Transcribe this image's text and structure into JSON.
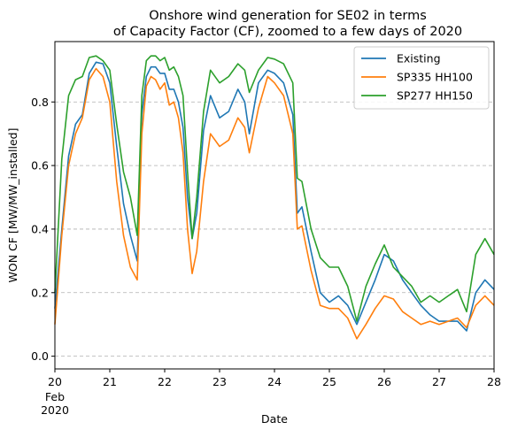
{
  "chart_data": {
    "type": "line",
    "title_lines": [
      "Onshore wind generation for SE02 in terms",
      "of Capacity Factor (CF), zoomed to a few days of 2020"
    ],
    "xlabel": "Date",
    "ylabel": "WON CF [MW/MW_installed]",
    "xlim": [
      "2020-02-20",
      "2020-02-28"
    ],
    "ylim": [
      -0.04,
      0.99
    ],
    "x_ticks": [
      "20",
      "21",
      "22",
      "23",
      "24",
      "25",
      "26",
      "27",
      "28"
    ],
    "x_tick_sublabels": [
      "Feb",
      "2020"
    ],
    "y_ticks": [
      "0.0",
      "0.2",
      "0.4",
      "0.6",
      "0.8"
    ],
    "grid": "y-dashed",
    "legend_position": "top-right",
    "series": [
      {
        "name": "Existing",
        "color": "#1f77b4",
        "points": [
          [
            "2020-02-20 00:00",
            0.15
          ],
          [
            "2020-02-20 03:00",
            0.4
          ],
          [
            "2020-02-20 06:00",
            0.63
          ],
          [
            "2020-02-20 09:00",
            0.73
          ],
          [
            "2020-02-20 12:00",
            0.76
          ],
          [
            "2020-02-20 15:00",
            0.89
          ],
          [
            "2020-02-20 18:00",
            0.925
          ],
          [
            "2020-02-20 21:00",
            0.92
          ],
          [
            "2020-02-21 00:00",
            0.86
          ],
          [
            "2020-02-21 03:00",
            0.66
          ],
          [
            "2020-02-21 06:00",
            0.48
          ],
          [
            "2020-02-21 09:00",
            0.38
          ],
          [
            "2020-02-21 12:00",
            0.3
          ],
          [
            "2020-02-21 14:00",
            0.76
          ],
          [
            "2020-02-21 16:00",
            0.88
          ],
          [
            "2020-02-21 18:00",
            0.91
          ],
          [
            "2020-02-21 20:00",
            0.91
          ],
          [
            "2020-02-21 22:00",
            0.89
          ],
          [
            "2020-02-22 00:00",
            0.89
          ],
          [
            "2020-02-22 02:00",
            0.84
          ],
          [
            "2020-02-22 04:00",
            0.84
          ],
          [
            "2020-02-22 06:00",
            0.8
          ],
          [
            "2020-02-22 08:00",
            0.72
          ],
          [
            "2020-02-22 10:00",
            0.5
          ],
          [
            "2020-02-22 12:00",
            0.37
          ],
          [
            "2020-02-22 14:00",
            0.45
          ],
          [
            "2020-02-22 17:00",
            0.71
          ],
          [
            "2020-02-22 20:00",
            0.82
          ],
          [
            "2020-02-23 00:00",
            0.75
          ],
          [
            "2020-02-23 04:00",
            0.77
          ],
          [
            "2020-02-23 08:00",
            0.84
          ],
          [
            "2020-02-23 11:00",
            0.8
          ],
          [
            "2020-02-23 13:00",
            0.7
          ],
          [
            "2020-02-23 17:00",
            0.86
          ],
          [
            "2020-02-23 21:00",
            0.9
          ],
          [
            "2020-02-24 00:00",
            0.89
          ],
          [
            "2020-02-24 04:00",
            0.86
          ],
          [
            "2020-02-24 08:00",
            0.76
          ],
          [
            "2020-02-24 10:00",
            0.45
          ],
          [
            "2020-02-24 12:00",
            0.47
          ],
          [
            "2020-02-24 16:00",
            0.33
          ],
          [
            "2020-02-24 20:00",
            0.2
          ],
          [
            "2020-02-25 00:00",
            0.17
          ],
          [
            "2020-02-25 04:00",
            0.19
          ],
          [
            "2020-02-25 08:00",
            0.16
          ],
          [
            "2020-02-25 12:00",
            0.1
          ],
          [
            "2020-02-25 16:00",
            0.17
          ],
          [
            "2020-02-25 20:00",
            0.24
          ],
          [
            "2020-02-26 00:00",
            0.32
          ],
          [
            "2020-02-26 04:00",
            0.3
          ],
          [
            "2020-02-26 08:00",
            0.24
          ],
          [
            "2020-02-26 12:00",
            0.2
          ],
          [
            "2020-02-26 16:00",
            0.16
          ],
          [
            "2020-02-26 20:00",
            0.13
          ],
          [
            "2020-02-27 00:00",
            0.11
          ],
          [
            "2020-02-27 04:00",
            0.11
          ],
          [
            "2020-02-27 08:00",
            0.11
          ],
          [
            "2020-02-27 12:00",
            0.08
          ],
          [
            "2020-02-27 16:00",
            0.2
          ],
          [
            "2020-02-27 20:00",
            0.24
          ],
          [
            "2020-02-28 00:00",
            0.21
          ]
        ]
      },
      {
        "name": "SP335 HH100",
        "color": "#ff7f0e",
        "points": [
          [
            "2020-02-20 00:00",
            0.1
          ],
          [
            "2020-02-20 03:00",
            0.38
          ],
          [
            "2020-02-20 06:00",
            0.6
          ],
          [
            "2020-02-20 09:00",
            0.7
          ],
          [
            "2020-02-20 12:00",
            0.75
          ],
          [
            "2020-02-20 15:00",
            0.87
          ],
          [
            "2020-02-20 18:00",
            0.905
          ],
          [
            "2020-02-20 21:00",
            0.88
          ],
          [
            "2020-02-21 00:00",
            0.8
          ],
          [
            "2020-02-21 03:00",
            0.55
          ],
          [
            "2020-02-21 06:00",
            0.38
          ],
          [
            "2020-02-21 09:00",
            0.28
          ],
          [
            "2020-02-21 12:00",
            0.24
          ],
          [
            "2020-02-21 14:00",
            0.7
          ],
          [
            "2020-02-21 16:00",
            0.85
          ],
          [
            "2020-02-21 18:00",
            0.88
          ],
          [
            "2020-02-21 20:00",
            0.87
          ],
          [
            "2020-02-21 22:00",
            0.84
          ],
          [
            "2020-02-22 00:00",
            0.86
          ],
          [
            "2020-02-22 02:00",
            0.79
          ],
          [
            "2020-02-22 04:00",
            0.8
          ],
          [
            "2020-02-22 06:00",
            0.75
          ],
          [
            "2020-02-22 08:00",
            0.64
          ],
          [
            "2020-02-22 10:00",
            0.4
          ],
          [
            "2020-02-22 12:00",
            0.26
          ],
          [
            "2020-02-22 14:00",
            0.33
          ],
          [
            "2020-02-22 17:00",
            0.55
          ],
          [
            "2020-02-22 20:00",
            0.7
          ],
          [
            "2020-02-23 00:00",
            0.66
          ],
          [
            "2020-02-23 04:00",
            0.68
          ],
          [
            "2020-02-23 08:00",
            0.75
          ],
          [
            "2020-02-23 11:00",
            0.72
          ],
          [
            "2020-02-23 13:00",
            0.64
          ],
          [
            "2020-02-23 17:00",
            0.78
          ],
          [
            "2020-02-23 21:00",
            0.88
          ],
          [
            "2020-02-24 00:00",
            0.86
          ],
          [
            "2020-02-24 04:00",
            0.82
          ],
          [
            "2020-02-24 08:00",
            0.7
          ],
          [
            "2020-02-24 10:00",
            0.4
          ],
          [
            "2020-02-24 12:00",
            0.41
          ],
          [
            "2020-02-24 16:00",
            0.27
          ],
          [
            "2020-02-24 20:00",
            0.16
          ],
          [
            "2020-02-25 00:00",
            0.15
          ],
          [
            "2020-02-25 04:00",
            0.15
          ],
          [
            "2020-02-25 08:00",
            0.12
          ],
          [
            "2020-02-25 12:00",
            0.055
          ],
          [
            "2020-02-25 16:00",
            0.1
          ],
          [
            "2020-02-25 20:00",
            0.15
          ],
          [
            "2020-02-26 00:00",
            0.19
          ],
          [
            "2020-02-26 04:00",
            0.18
          ],
          [
            "2020-02-26 08:00",
            0.14
          ],
          [
            "2020-02-26 12:00",
            0.12
          ],
          [
            "2020-02-26 16:00",
            0.1
          ],
          [
            "2020-02-26 20:00",
            0.11
          ],
          [
            "2020-02-27 00:00",
            0.1
          ],
          [
            "2020-02-27 04:00",
            0.11
          ],
          [
            "2020-02-27 08:00",
            0.12
          ],
          [
            "2020-02-27 12:00",
            0.09
          ],
          [
            "2020-02-27 16:00",
            0.16
          ],
          [
            "2020-02-27 20:00",
            0.19
          ],
          [
            "2020-02-28 00:00",
            0.16
          ]
        ]
      },
      {
        "name": "SP277 HH150",
        "color": "#2ca02c",
        "points": [
          [
            "2020-02-20 00:00",
            0.2
          ],
          [
            "2020-02-20 03:00",
            0.62
          ],
          [
            "2020-02-20 06:00",
            0.82
          ],
          [
            "2020-02-20 09:00",
            0.87
          ],
          [
            "2020-02-20 12:00",
            0.88
          ],
          [
            "2020-02-20 15:00",
            0.94
          ],
          [
            "2020-02-20 18:00",
            0.945
          ],
          [
            "2020-02-20 21:00",
            0.93
          ],
          [
            "2020-02-21 00:00",
            0.9
          ],
          [
            "2020-02-21 03:00",
            0.73
          ],
          [
            "2020-02-21 06:00",
            0.58
          ],
          [
            "2020-02-21 09:00",
            0.5
          ],
          [
            "2020-02-21 12:00",
            0.38
          ],
          [
            "2020-02-21 14:00",
            0.82
          ],
          [
            "2020-02-21 16:00",
            0.93
          ],
          [
            "2020-02-21 18:00",
            0.945
          ],
          [
            "2020-02-21 20:00",
            0.945
          ],
          [
            "2020-02-21 22:00",
            0.93
          ],
          [
            "2020-02-22 00:00",
            0.94
          ],
          [
            "2020-02-22 02:00",
            0.9
          ],
          [
            "2020-02-22 04:00",
            0.91
          ],
          [
            "2020-02-22 06:00",
            0.88
          ],
          [
            "2020-02-22 08:00",
            0.82
          ],
          [
            "2020-02-22 10:00",
            0.58
          ],
          [
            "2020-02-22 12:00",
            0.37
          ],
          [
            "2020-02-22 14:00",
            0.5
          ],
          [
            "2020-02-22 17:00",
            0.77
          ],
          [
            "2020-02-22 20:00",
            0.9
          ],
          [
            "2020-02-23 00:00",
            0.86
          ],
          [
            "2020-02-23 04:00",
            0.88
          ],
          [
            "2020-02-23 08:00",
            0.92
          ],
          [
            "2020-02-23 11:00",
            0.9
          ],
          [
            "2020-02-23 13:00",
            0.83
          ],
          [
            "2020-02-23 17:00",
            0.9
          ],
          [
            "2020-02-23 21:00",
            0.94
          ],
          [
            "2020-02-24 00:00",
            0.935
          ],
          [
            "2020-02-24 04:00",
            0.92
          ],
          [
            "2020-02-24 08:00",
            0.86
          ],
          [
            "2020-02-24 10:00",
            0.56
          ],
          [
            "2020-02-24 12:00",
            0.55
          ],
          [
            "2020-02-24 16:00",
            0.4
          ],
          [
            "2020-02-24 20:00",
            0.31
          ],
          [
            "2020-02-25 00:00",
            0.28
          ],
          [
            "2020-02-25 04:00",
            0.28
          ],
          [
            "2020-02-25 08:00",
            0.22
          ],
          [
            "2020-02-25 12:00",
            0.11
          ],
          [
            "2020-02-25 16:00",
            0.22
          ],
          [
            "2020-02-25 20:00",
            0.29
          ],
          [
            "2020-02-26 00:00",
            0.35
          ],
          [
            "2020-02-26 04:00",
            0.28
          ],
          [
            "2020-02-26 08:00",
            0.25
          ],
          [
            "2020-02-26 12:00",
            0.22
          ],
          [
            "2020-02-26 16:00",
            0.17
          ],
          [
            "2020-02-26 20:00",
            0.19
          ],
          [
            "2020-02-27 00:00",
            0.17
          ],
          [
            "2020-02-27 04:00",
            0.19
          ],
          [
            "2020-02-27 08:00",
            0.21
          ],
          [
            "2020-02-27 12:00",
            0.14
          ],
          [
            "2020-02-27 16:00",
            0.32
          ],
          [
            "2020-02-27 20:00",
            0.37
          ],
          [
            "2020-02-28 00:00",
            0.32
          ]
        ]
      }
    ]
  }
}
